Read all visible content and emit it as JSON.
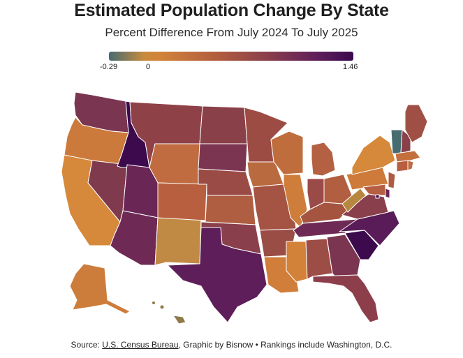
{
  "title": "Estimated Population Change By State",
  "subtitle": "Percent Difference From July 2024 To July 2025",
  "legend": {
    "min_label": "-0.29",
    "zero_label": "0",
    "max_label": "1.46",
    "min_value": -0.29,
    "max_value": 1.46,
    "colors": [
      "#466c72",
      "#c88a3e",
      "#b05c3e",
      "#8a3f4c",
      "#5e1e5a",
      "#3d0a4e"
    ]
  },
  "source": {
    "prefix": "Source: ",
    "link_text": "U.S. Census Bureau",
    "suffix": ", Graphic by Bisnow • Rankings include Washington, D.C."
  },
  "states": [
    {
      "id": "WA",
      "color": "#7a3550"
    },
    {
      "id": "OR",
      "color": "#cc7a3c"
    },
    {
      "id": "CA",
      "color": "#d6893a"
    },
    {
      "id": "NV",
      "color": "#7f3a4e"
    },
    {
      "id": "ID",
      "color": "#3d0a4e"
    },
    {
      "id": "MT",
      "color": "#8f4148"
    },
    {
      "id": "WY",
      "color": "#c06c40"
    },
    {
      "id": "UT",
      "color": "#6a2755"
    },
    {
      "id": "AZ",
      "color": "#6e2955"
    },
    {
      "id": "NM",
      "color": "#c08a44"
    },
    {
      "id": "CO",
      "color": "#b85f3f"
    },
    {
      "id": "ND",
      "color": "#8a4049"
    },
    {
      "id": "SD",
      "color": "#7c3550"
    },
    {
      "id": "NE",
      "color": "#9a4b45"
    },
    {
      "id": "KS",
      "color": "#b05e41"
    },
    {
      "id": "OK",
      "color": "#8a3f4c"
    },
    {
      "id": "TX",
      "color": "#5e1e5a"
    },
    {
      "id": "MN",
      "color": "#9d4c44"
    },
    {
      "id": "IA",
      "color": "#b96a3f"
    },
    {
      "id": "MO",
      "color": "#a55443"
    },
    {
      "id": "AR",
      "color": "#9a4d45"
    },
    {
      "id": "LA",
      "color": "#d07e3a"
    },
    {
      "id": "WI",
      "color": "#c06d3e"
    },
    {
      "id": "IL",
      "color": "#cf7d3a"
    },
    {
      "id": "MI",
      "color": "#b36142"
    },
    {
      "id": "IN",
      "color": "#9a4a47"
    },
    {
      "id": "OH",
      "color": "#b25e41"
    },
    {
      "id": "KY",
      "color": "#a4543f"
    },
    {
      "id": "TN",
      "color": "#6e2a54"
    },
    {
      "id": "MS",
      "color": "#d3823a"
    },
    {
      "id": "AL",
      "color": "#9c4d45"
    },
    {
      "id": "GA",
      "color": "#7c3550"
    },
    {
      "id": "FL",
      "color": "#8c3f4b"
    },
    {
      "id": "SC",
      "color": "#3d0a4e"
    },
    {
      "id": "NC",
      "color": "#5a1c58"
    },
    {
      "id": "VA",
      "color": "#8a3f4c"
    },
    {
      "id": "WV",
      "color": "#b8873f"
    },
    {
      "id": "PA",
      "color": "#cd7a3b"
    },
    {
      "id": "NY",
      "color": "#d6893a"
    },
    {
      "id": "VT",
      "color": "#466c72"
    },
    {
      "id": "NH",
      "color": "#8a4049"
    },
    {
      "id": "ME",
      "color": "#a04f45"
    },
    {
      "id": "MA",
      "color": "#c4703e"
    },
    {
      "id": "CT",
      "color": "#b85f40"
    },
    {
      "id": "RI",
      "color": "#c06a3f"
    },
    {
      "id": "NJ",
      "color": "#b05a42"
    },
    {
      "id": "DE",
      "color": "#6a2755"
    },
    {
      "id": "MD",
      "color": "#b65e41"
    },
    {
      "id": "DC",
      "color": "#3d0a4e"
    },
    {
      "id": "AK",
      "color": "#cd7d3b"
    },
    {
      "id": "HI",
      "color": "#8f7a4a"
    }
  ]
}
